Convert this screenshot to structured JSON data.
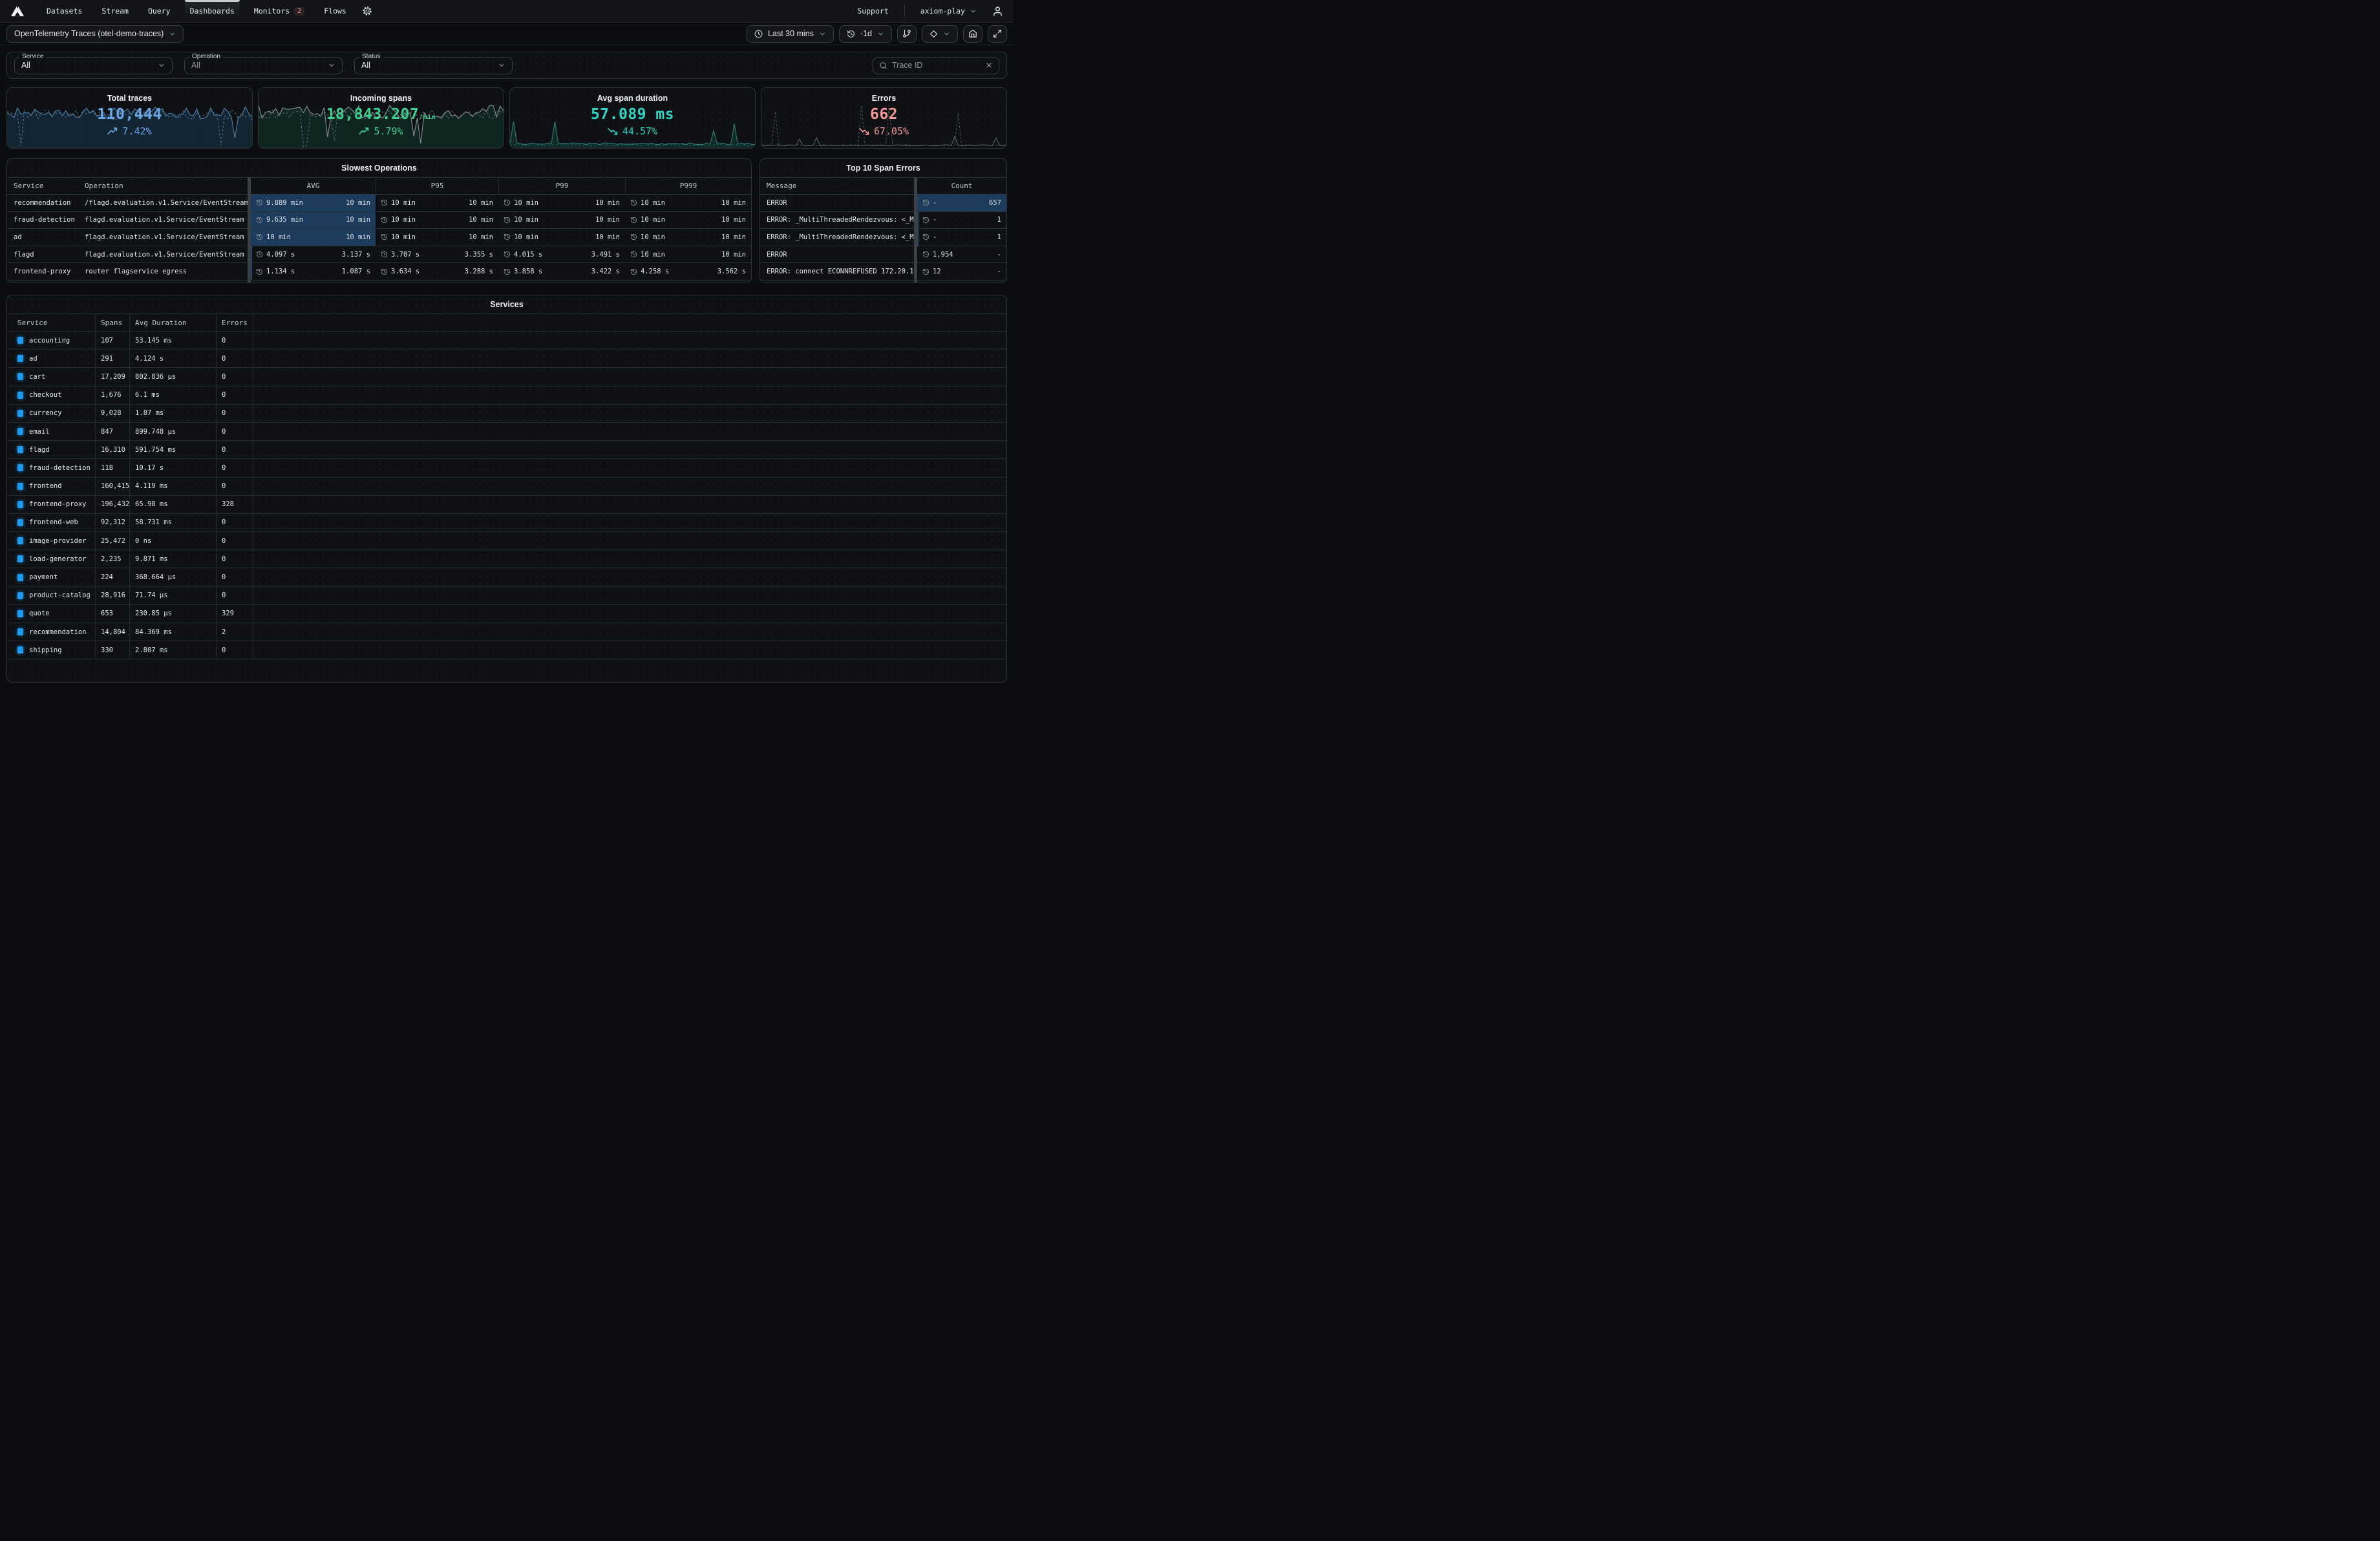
{
  "nav": {
    "items": [
      {
        "label": "Datasets",
        "active": false,
        "badge": null
      },
      {
        "label": "Stream",
        "active": false,
        "badge": null
      },
      {
        "label": "Query",
        "active": false,
        "badge": null
      },
      {
        "label": "Dashboards",
        "active": true,
        "badge": null
      },
      {
        "label": "Monitors",
        "active": false,
        "badge": "2"
      },
      {
        "label": "Flows",
        "active": false,
        "badge": null
      }
    ],
    "support_label": "Support",
    "org_label": "axiom-play"
  },
  "toolbar": {
    "dashboard_select": "OpenTelemetry Traces (otel-demo-traces)",
    "time_range": "Last 30 mins",
    "compare": "-1d"
  },
  "filters": {
    "service": {
      "label": "Service",
      "value": "All"
    },
    "operation": {
      "label": "Operation",
      "value": "All"
    },
    "status": {
      "label": "Status",
      "value": "All"
    },
    "trace": {
      "placeholder": "Trace ID"
    }
  },
  "kpis": [
    {
      "title": "Total traces",
      "value": "110,444",
      "suffix": "",
      "trend": "7.42%",
      "dir": "up",
      "color": "#6ba7e8",
      "spark": {
        "fill": "rgba(23,53,78,0.55)",
        "solid_color": "#4a7da3",
        "dash_color": "rgba(98,145,180,0.8)",
        "solid": {
          "seed": 11,
          "base": 0.42,
          "amp": 0.1,
          "spikeProb": 0.02,
          "spikeLo": 0.75,
          "spikeHi": 0.95
        },
        "dash": {
          "seed": 29,
          "base": 0.45,
          "amp": 0.09,
          "spikeProb": 0.04,
          "spikeLo": 0.9,
          "spikeHi": 1.0
        }
      }
    },
    {
      "title": "Incoming spans",
      "value": "18,843.207",
      "suffix": "/min",
      "trend": "5.79%",
      "dir": "up",
      "color": "#3bd08f",
      "spark": {
        "fill": "rgba(17,56,43,0.55)",
        "solid_color": "#828a91",
        "dash_color": "rgba(130,138,145,0.75)",
        "solid": {
          "seed": 7,
          "base": 0.4,
          "amp": 0.11,
          "spikeProb": 0.03,
          "spikeLo": 0.8,
          "spikeHi": 1.0
        },
        "dash": {
          "seed": 41,
          "base": 0.44,
          "amp": 0.08,
          "spikeProb": 0.04,
          "spikeLo": 0.85,
          "spikeHi": 1.0
        }
      }
    },
    {
      "title": "Avg span duration",
      "value": "57.089 ms",
      "suffix": "",
      "trend": "44.57%",
      "dir": "down",
      "color": "#2fd4c3",
      "spark": {
        "fill": "rgba(19,70,64,0.45)",
        "solid_color": "#2c7a74",
        "dash_color": "rgba(52,150,140,0.7)",
        "solid": {
          "seed": 13,
          "base": 0.93,
          "amp": 0.015,
          "spikeProb": 0.05,
          "spikeLo": 0.55,
          "spikeHi": 0.75
        },
        "dash": {
          "seed": 57,
          "base": 0.95,
          "amp": 0.01,
          "spikeProb": 0.035,
          "spikeLo": 0.25,
          "spikeHi": 0.5
        }
      }
    },
    {
      "title": "Errors",
      "value": "662",
      "suffix": "",
      "trend": "67.05%",
      "dir": "down",
      "color": "#f29898",
      "spark": {
        "fill": "none",
        "solid_color": "#565b60",
        "dash_color": "rgba(122,128,134,0.65)",
        "solid": {
          "seed": 3,
          "base": 0.955,
          "amp": 0.008,
          "spikeProb": 0.015,
          "spikeLo": 0.8,
          "spikeHi": 0.86
        },
        "dash": {
          "seed": 23,
          "base": 0.95,
          "amp": 0.008,
          "spikeProb": 0.03,
          "spikeLo": 0.25,
          "spikeHi": 0.45
        }
      }
    }
  ],
  "slowest_operations": {
    "title": "Slowest Operations",
    "columns": [
      "Service",
      "Operation",
      "AVG",
      "P95",
      "P99",
      "P999"
    ],
    "rows": [
      {
        "service": "recommendation",
        "operation": "/flagd.evaluation.v1.Service/EventStream",
        "metrics": [
          {
            "v1": "9.889 min",
            "v2": "10 min",
            "heat": "full"
          },
          {
            "v1": "10 min",
            "v2": "10 min",
            "heat": "none"
          },
          {
            "v1": "10 min",
            "v2": "10 min",
            "heat": "none"
          },
          {
            "v1": "10 min",
            "v2": "10 min",
            "heat": "none"
          }
        ]
      },
      {
        "service": "fraud-detection",
        "operation": "flagd.evaluation.v1.Service/EventStream",
        "metrics": [
          {
            "v1": "9.635 min",
            "v2": "10 min",
            "heat": "full"
          },
          {
            "v1": "10 min",
            "v2": "10 min",
            "heat": "none"
          },
          {
            "v1": "10 min",
            "v2": "10 min",
            "heat": "none"
          },
          {
            "v1": "10 min",
            "v2": "10 min",
            "heat": "none"
          }
        ]
      },
      {
        "service": "ad",
        "operation": "flagd.evaluation.v1.Service/EventStream",
        "metrics": [
          {
            "v1": "10 min",
            "v2": "10 min",
            "heat": "full"
          },
          {
            "v1": "10 min",
            "v2": "10 min",
            "heat": "none"
          },
          {
            "v1": "10 min",
            "v2": "10 min",
            "heat": "none"
          },
          {
            "v1": "10 min",
            "v2": "10 min",
            "heat": "none"
          }
        ]
      },
      {
        "service": "flagd",
        "operation": "flagd.evaluation.v1.Service/EventStream",
        "metrics": [
          {
            "v1": "4.097 s",
            "v2": "3.137 s",
            "heat": "edge"
          },
          {
            "v1": "3.707 s",
            "v2": "3.355 s",
            "heat": "none"
          },
          {
            "v1": "4.015 s",
            "v2": "3.491 s",
            "heat": "none"
          },
          {
            "v1": "10 min",
            "v2": "10 min",
            "heat": "none"
          }
        ]
      },
      {
        "service": "frontend-proxy",
        "operation": "router flagservice egress",
        "metrics": [
          {
            "v1": "1.134 s",
            "v2": "1.087 s",
            "heat": "edge"
          },
          {
            "v1": "3.634 s",
            "v2": "3.288 s",
            "heat": "none"
          },
          {
            "v1": "3.858 s",
            "v2": "3.422 s",
            "heat": "none"
          },
          {
            "v1": "4.258 s",
            "v2": "3.562 s",
            "heat": "none"
          }
        ]
      }
    ]
  },
  "top_span_errors": {
    "title": "Top 10 Span Errors",
    "columns": [
      "Message",
      "Count"
    ],
    "rows": [
      {
        "message": "ERROR",
        "v1": "-",
        "v2": "657",
        "heat": "full"
      },
      {
        "message": "ERROR: _MultiThreadedRendezvous: <_M…",
        "v1": "-",
        "v2": "1",
        "heat": "edge"
      },
      {
        "message": "ERROR: _MultiThreadedRendezvous: <_M…",
        "v1": "-",
        "v2": "1",
        "heat": "edge"
      },
      {
        "message": "ERROR",
        "v1": "1,954",
        "v2": "-",
        "heat": "none"
      },
      {
        "message": "ERROR: connect ECONNREFUSED 172.20.1…",
        "v1": "12",
        "v2": "-",
        "heat": "none"
      }
    ]
  },
  "services": {
    "title": "Services",
    "columns": [
      "Service",
      "Spans",
      "Avg Duration",
      "Errors"
    ],
    "rows": [
      {
        "name": "accounting",
        "spans": "107",
        "avg": "53.145 ms",
        "errors": "0"
      },
      {
        "name": "ad",
        "spans": "291",
        "avg": "4.124 s",
        "errors": "0"
      },
      {
        "name": "cart",
        "spans": "17,209",
        "avg": "802.836 µs",
        "errors": "0"
      },
      {
        "name": "checkout",
        "spans": "1,676",
        "avg": "6.1 ms",
        "errors": "0"
      },
      {
        "name": "currency",
        "spans": "9,028",
        "avg": "1.87 ms",
        "errors": "0"
      },
      {
        "name": "email",
        "spans": "847",
        "avg": "899.748 µs",
        "errors": "0"
      },
      {
        "name": "flagd",
        "spans": "16,310",
        "avg": "591.754 ms",
        "errors": "0"
      },
      {
        "name": "fraud-detection",
        "spans": "118",
        "avg": "10.17 s",
        "errors": "0"
      },
      {
        "name": "frontend",
        "spans": "160,415",
        "avg": "4.119 ms",
        "errors": "0"
      },
      {
        "name": "frontend-proxy",
        "spans": "196,432",
        "avg": "65.98 ms",
        "errors": "328"
      },
      {
        "name": "frontend-web",
        "spans": "92,312",
        "avg": "58.731 ms",
        "errors": "0"
      },
      {
        "name": "image-provider",
        "spans": "25,472",
        "avg": "0 ns",
        "errors": "0"
      },
      {
        "name": "load-generator",
        "spans": "2,235",
        "avg": "9.871 ms",
        "errors": "0"
      },
      {
        "name": "payment",
        "spans": "224",
        "avg": "368.664 µs",
        "errors": "0"
      },
      {
        "name": "product-catalog",
        "spans": "28,916",
        "avg": "71.74 µs",
        "errors": "0"
      },
      {
        "name": "quote",
        "spans": "653",
        "avg": "230.85 µs",
        "errors": "329"
      },
      {
        "name": "recommendation",
        "spans": "14,804",
        "avg": "84.369 ms",
        "errors": "2"
      },
      {
        "name": "shipping",
        "spans": "330",
        "avg": "2.807 ms",
        "errors": "0"
      }
    ]
  },
  "colors": {
    "accent_blue": "#6ba7e8",
    "accent_green": "#3bd08f",
    "accent_teal": "#2fd4c3",
    "accent_red": "#f29898",
    "heat_cell": "#1d3b5c",
    "service_dot": "#1e9bf0",
    "badge_red": "#ef8f8f"
  }
}
